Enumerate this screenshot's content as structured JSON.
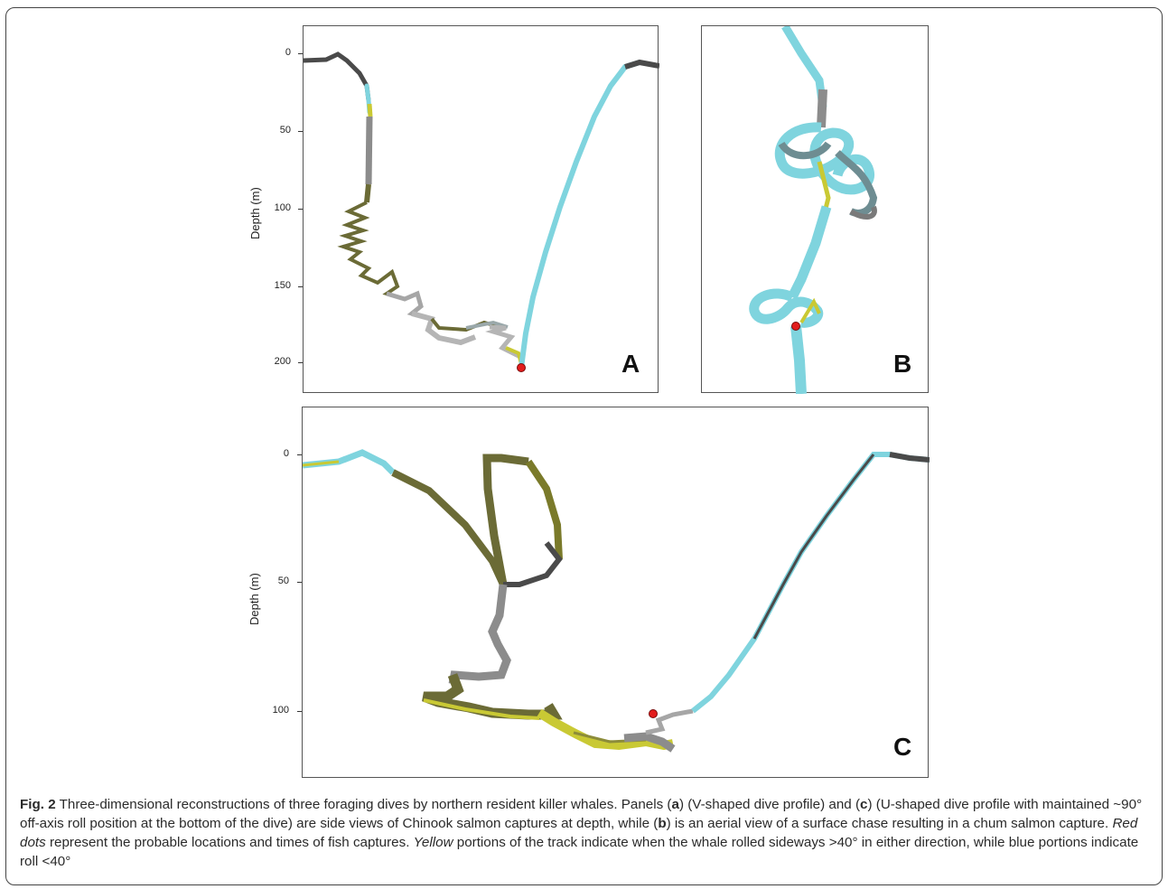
{
  "figure": {
    "panels": [
      {
        "letter": "A",
        "ylabel": "Depth (m)",
        "ticks": [
          "0",
          "50",
          "100",
          "150",
          "200"
        ]
      },
      {
        "letter": "B"
      },
      {
        "letter": "C",
        "ylabel": "Depth (m)",
        "ticks": [
          "0",
          "50",
          "100"
        ]
      }
    ],
    "colors": {
      "yellow": "#c9c934",
      "blue": "#7fd4de",
      "dark": "#4a4a4a",
      "grey": "#a6a6a6",
      "capture": "#e21d1d"
    }
  },
  "caption": {
    "fig_label": "Fig. 2",
    "t1": " Three-dimensional reconstructions of three foraging dives by northern resident killer whales. Panels (",
    "a": "a",
    "t2": ") (V-shaped dive profile) and (",
    "c": "c",
    "t3": ") (U-shaped dive profile with maintained ~90° off-axis roll position at the bottom of the dive) are side views of Chinook salmon captures at depth, while (",
    "b": "b",
    "t4": ") is an aerial view of a surface chase resulting in a chum salmon capture. ",
    "red_dots": "Red dots",
    "t5": " represent the probable locations and times of fish captures. ",
    "yellow": "Yellow",
    "t6": " portions of the track indicate when the whale rolled sideways >40° in either direction, while blue portions indicate roll <40°"
  }
}
